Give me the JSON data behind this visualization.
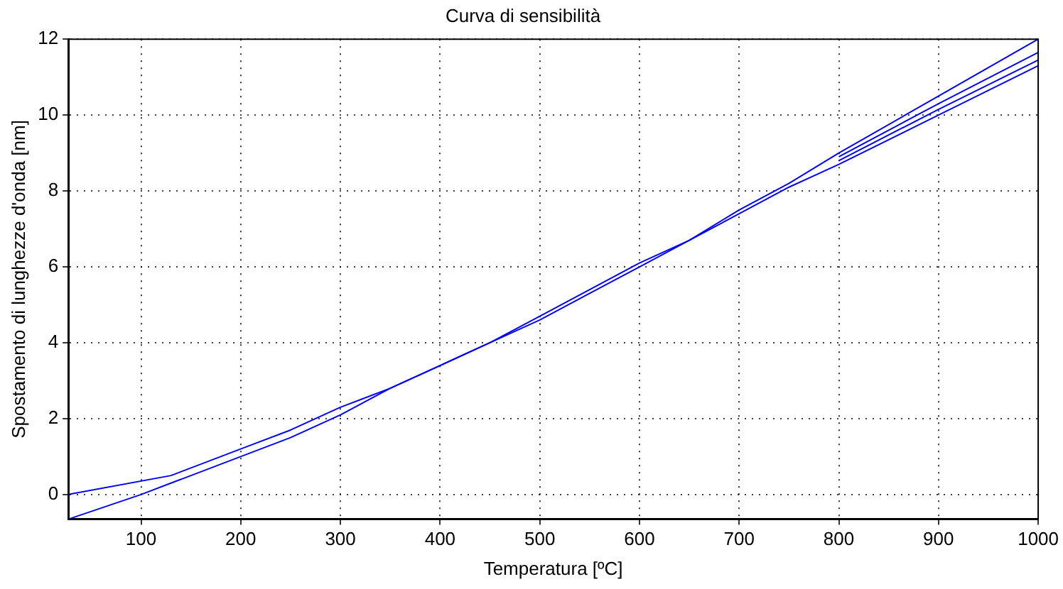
{
  "chart_data": {
    "type": "line",
    "title": "Curva di sensibilità",
    "xlabel": "Temperatura [ºC]",
    "ylabel": "Spostamento di lunghezze d'onda [nm]",
    "xlim": [
      27,
      1000
    ],
    "xticks": [
      100,
      200,
      300,
      400,
      500,
      600,
      700,
      800,
      900,
      1000
    ],
    "ylim": [
      -0.65,
      12
    ],
    "yticks": [
      0,
      2,
      4,
      6,
      8,
      10,
      12
    ],
    "grid": true,
    "marker": "none",
    "line_style": "solid",
    "series": [
      {
        "color": "#0000ff",
        "x": [
          27,
          100,
          130,
          200,
          250,
          300,
          350,
          400,
          450,
          500,
          550,
          600,
          650,
          700,
          750,
          800,
          900,
          1000
        ],
        "values": [
          -0.65,
          0,
          0.3,
          1.0,
          1.5,
          2.1,
          2.8,
          3.4,
          4.0,
          4.7,
          5.4,
          6.1,
          6.7,
          7.4,
          8.1,
          8.7,
          10.0,
          11.3
        ]
      },
      {
        "color": "#0000ff",
        "x": [
          27,
          130,
          200,
          250,
          300,
          350,
          400,
          450,
          500,
          550,
          600,
          650,
          700,
          750,
          800,
          900,
          1000
        ],
        "values": [
          0,
          0.5,
          1.2,
          1.7,
          2.3,
          2.8,
          3.4,
          4.0,
          4.6,
          5.3,
          6.0,
          6.7,
          7.5,
          8.2,
          9.0,
          10.5,
          12
        ]
      },
      {
        "color": "#0000ff",
        "x": [
          800,
          900,
          1000
        ],
        "values": [
          8.8,
          10.15,
          11.45
        ]
      },
      {
        "color": "#0000ff",
        "x": [
          800,
          900,
          1000
        ],
        "values": [
          8.9,
          10.3,
          11.65
        ]
      }
    ]
  }
}
